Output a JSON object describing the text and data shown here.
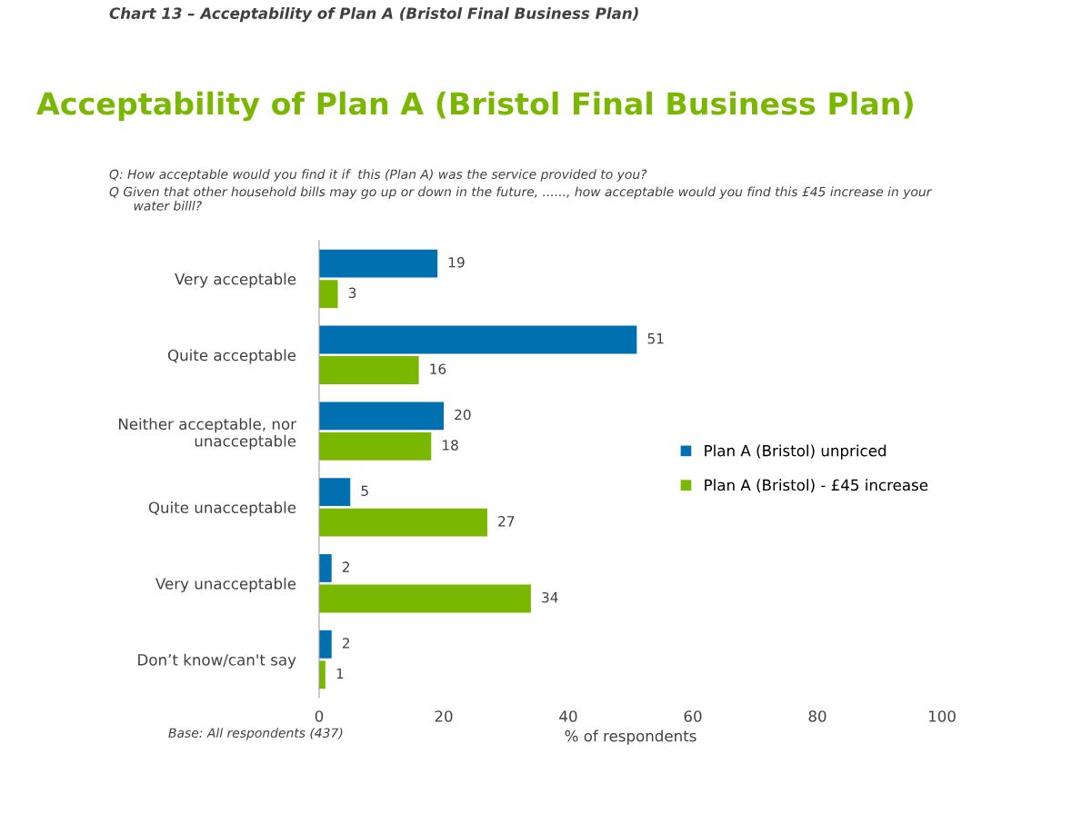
{
  "chart_data": {
    "type": "bar",
    "orientation": "horizontal",
    "title": "Acceptability of Plan A (Bristol Final Business Plan)",
    "xlabel": "% of respondents",
    "categories": [
      "Very acceptable",
      "Quite acceptable",
      "Neither acceptable, nor\nunacceptable",
      "Quite unacceptable",
      "Very unacceptable",
      "Don’t know/can't say"
    ],
    "series": [
      {
        "name": "Plan A (Bristol) unpriced",
        "color": "#0070b0",
        "values": [
          19,
          51,
          20,
          5,
          2,
          2
        ]
      },
      {
        "name": "Plan A (Bristol) - £45 increase",
        "color": "#7ab800",
        "values": [
          3,
          16,
          18,
          27,
          34,
          1
        ]
      }
    ],
    "xlim": [
      0,
      100
    ],
    "xticks": [
      0,
      20,
      40,
      60,
      80,
      100
    ],
    "grid": false,
    "legend": "right",
    "data_labels": true,
    "annotations": [
      "Chart 13 – Acceptability of Plan A (Bristol Final Business Plan)",
      "Q: How acceptable would you find it if  this (Plan A) was the service provided to you?",
      "Q Given that other household bills may go up or down in the future, ......, how acceptable would you find this £45 increase in your\n      water billl?",
      "Base: All respondents (437)"
    ]
  }
}
